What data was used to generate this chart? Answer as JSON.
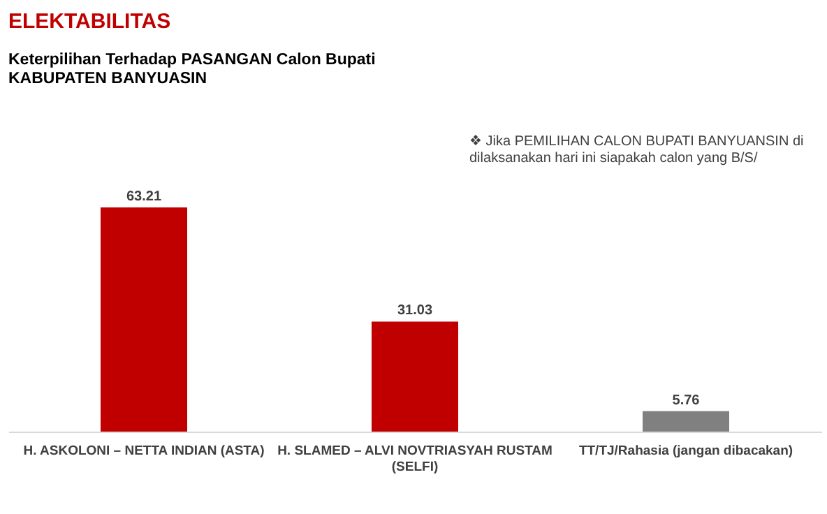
{
  "chart_data": {
    "type": "bar",
    "title": "ELEKTABILITAS",
    "subtitle": "Keterpilihan Terhadap PASANGAN Calon Bupati\nKABUPATEN BANYUASIN",
    "annotations": [
      "❖  Jika PEMILIHAN CALON BUPATI BANYUANSIN di\ndilaksanakan hari ini siapakah calon yang B/S/"
    ],
    "categories": [
      "H. ASKOLONI – NETTA INDIAN (ASTA)",
      "H. SLAMED – ALVI NOVTRIASYAH RUSTAM (SELFI)",
      "TT/TJ/Rahasia (jangan dibacakan)"
    ],
    "values": [
      63.21,
      31.03,
      5.76
    ],
    "colors": [
      "#c00000",
      "#c00000",
      "#808080"
    ],
    "data_labels": true,
    "grid": false,
    "legend": false
  }
}
